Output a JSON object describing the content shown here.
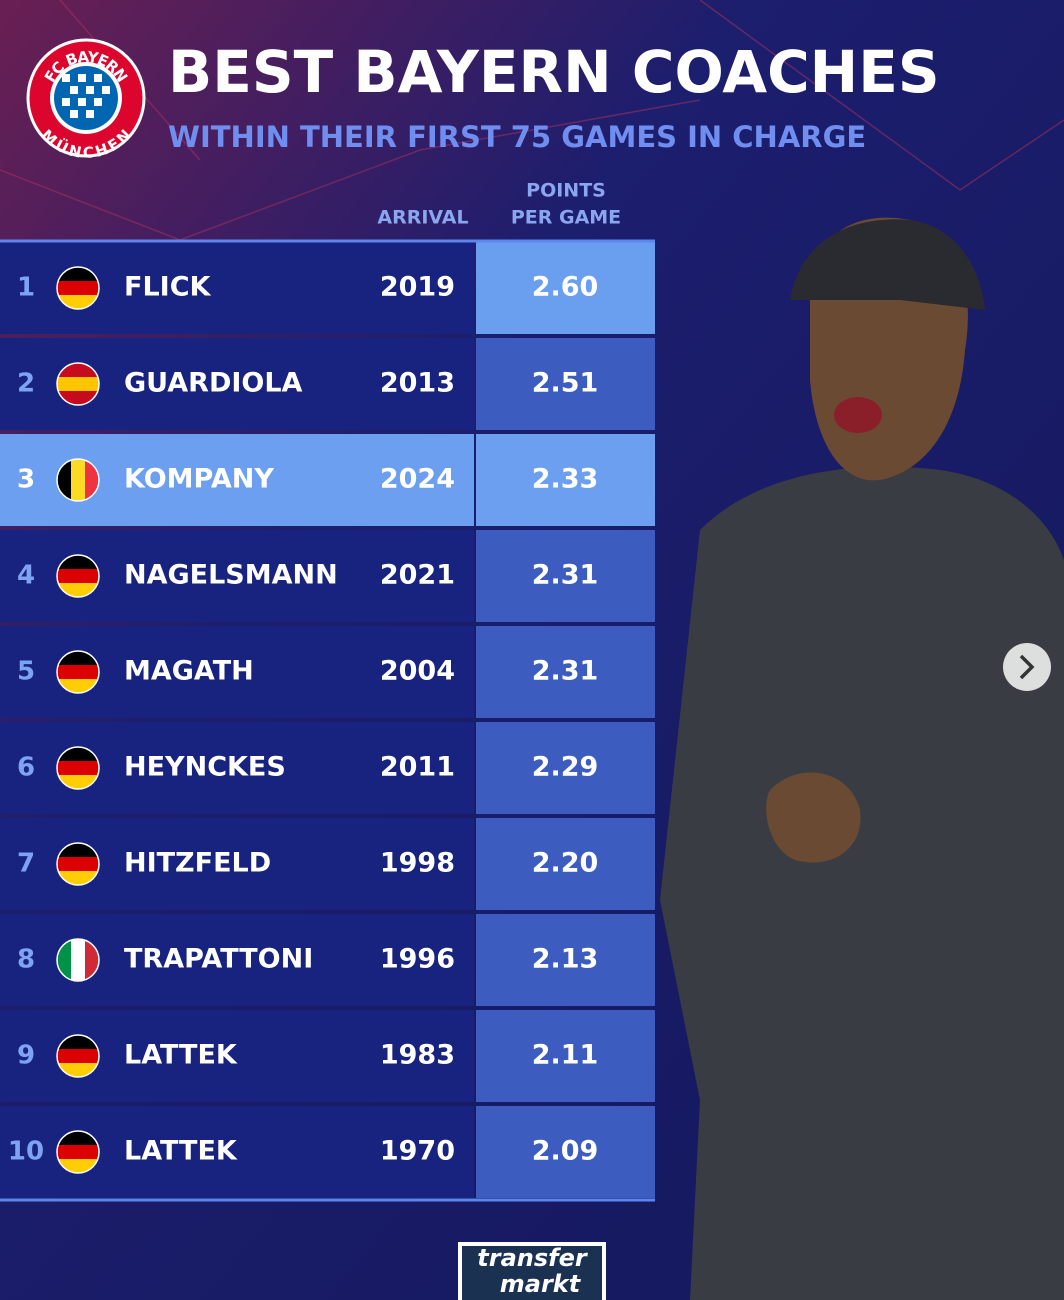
{
  "header": {
    "title": "BEST BAYERN COACHES",
    "subtitle": "WITHIN THEIR FIRST 75 GAMES IN CHARGE"
  },
  "logo": {
    "top": "FC BAYERN",
    "bottom": "MÜNCHEN"
  },
  "table": {
    "columns": [
      "ARRIVAL",
      "POINTS",
      "PER GAME"
    ],
    "rows": [
      [
        "1",
        "FLICK",
        "2019",
        "2.60"
      ],
      [
        "2",
        "GUARDIOLA",
        "2013",
        "2.51"
      ],
      [
        "3",
        "KOMPANY",
        "2024",
        "2.33"
      ],
      [
        "4",
        "NAGELSMANN",
        "2021",
        "2.31"
      ],
      [
        "5",
        "MAGATH",
        "2004",
        "2.31"
      ],
      [
        "6",
        "HEYNCKES",
        "2011",
        "2.29"
      ],
      [
        "7",
        "HITZFELD",
        "1998",
        "2.20"
      ],
      [
        "8",
        "TRAPATTONI",
        "1996",
        "2.13"
      ],
      [
        "9",
        "LATTEK",
        "1983",
        "2.11"
      ],
      [
        "10",
        "LATTEK",
        "1970",
        "2.09"
      ]
    ]
  },
  "footer": {
    "brand": [
      "transfer",
      "markt"
    ]
  }
}
